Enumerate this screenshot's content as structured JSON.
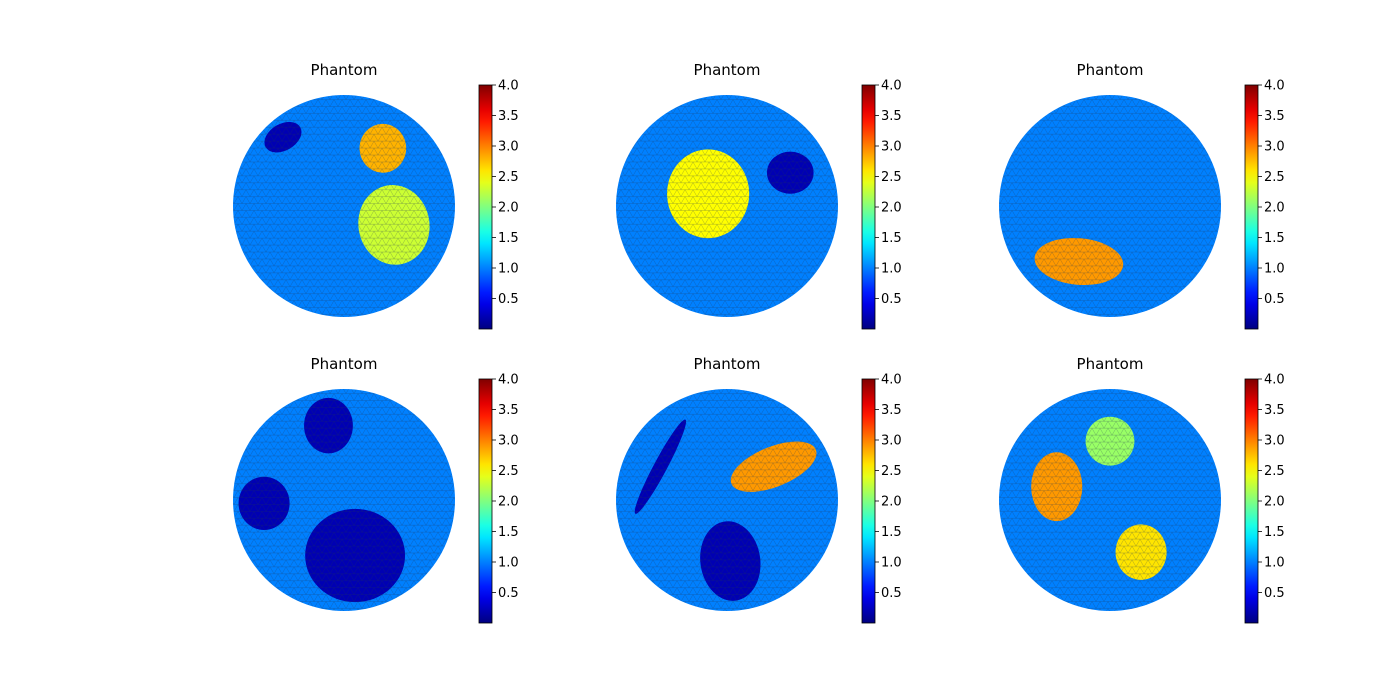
{
  "chart_data": {
    "type": "heatmap",
    "colormap": "jet",
    "colorbar": {
      "vmin": 0,
      "vmax": 4,
      "ticks": [
        0.5,
        1.0,
        1.5,
        2.0,
        2.5,
        3.0,
        3.5,
        4.0
      ],
      "tick_labels": [
        "0.5",
        "1.0",
        "1.5",
        "2.0",
        "2.5",
        "3.0",
        "3.5",
        "4.0"
      ]
    },
    "background_value": 1.0,
    "panels": [
      {
        "title": "Phantom",
        "inclusions": [
          {
            "shape": "ellipse",
            "cx": -0.55,
            "cy": 0.62,
            "rx": 0.18,
            "ry": 0.12,
            "angle": 30,
            "value": 0.2
          },
          {
            "shape": "ellipse",
            "cx": 0.35,
            "cy": 0.52,
            "rx": 0.21,
            "ry": 0.22,
            "angle": 0,
            "value": 2.8
          },
          {
            "shape": "ellipse",
            "cx": 0.45,
            "cy": -0.17,
            "rx": 0.32,
            "ry": 0.36,
            "angle": 10,
            "value": 2.3
          }
        ]
      },
      {
        "title": "Phantom",
        "inclusions": [
          {
            "shape": "ellipse",
            "cx": -0.17,
            "cy": 0.11,
            "rx": 0.37,
            "ry": 0.4,
            "angle": 0,
            "value": 2.5
          },
          {
            "shape": "ellipse",
            "cx": 0.57,
            "cy": 0.3,
            "rx": 0.21,
            "ry": 0.19,
            "angle": 0,
            "value": 0.2
          }
        ]
      },
      {
        "title": "Phantom",
        "inclusions": [
          {
            "shape": "ellipse",
            "cx": -0.28,
            "cy": -0.5,
            "rx": 0.4,
            "ry": 0.21,
            "angle": -5,
            "value": 2.9
          }
        ]
      },
      {
        "title": "Phantom",
        "inclusions": [
          {
            "shape": "ellipse",
            "cx": -0.14,
            "cy": 0.67,
            "rx": 0.22,
            "ry": 0.25,
            "angle": 0,
            "value": 0.2
          },
          {
            "shape": "ellipse",
            "cx": -0.72,
            "cy": -0.03,
            "rx": 0.23,
            "ry": 0.24,
            "angle": 0,
            "value": 0.2
          },
          {
            "shape": "ellipse",
            "cx": 0.1,
            "cy": -0.5,
            "rx": 0.45,
            "ry": 0.42,
            "angle": 0,
            "value": 0.2
          }
        ]
      },
      {
        "title": "Phantom",
        "inclusions": [
          {
            "shape": "ellipse",
            "cx": -0.6,
            "cy": 0.3,
            "rx": 0.48,
            "ry": 0.06,
            "angle": 62,
            "value": 0.2
          },
          {
            "shape": "ellipse",
            "cx": 0.42,
            "cy": 0.3,
            "rx": 0.41,
            "ry": 0.18,
            "angle": 22,
            "value": 2.9
          },
          {
            "shape": "ellipse",
            "cx": 0.03,
            "cy": -0.55,
            "rx": 0.27,
            "ry": 0.36,
            "angle": 8,
            "value": 0.2
          }
        ]
      },
      {
        "title": "Phantom",
        "inclusions": [
          {
            "shape": "ellipse",
            "cx": 0.0,
            "cy": 0.53,
            "rx": 0.22,
            "ry": 0.22,
            "angle": 0,
            "value": 2.1
          },
          {
            "shape": "ellipse",
            "cx": -0.48,
            "cy": 0.12,
            "rx": 0.23,
            "ry": 0.31,
            "angle": 0,
            "value": 2.9
          },
          {
            "shape": "ellipse",
            "cx": 0.28,
            "cy": -0.47,
            "rx": 0.23,
            "ry": 0.25,
            "angle": 0,
            "value": 2.6
          }
        ]
      }
    ]
  }
}
